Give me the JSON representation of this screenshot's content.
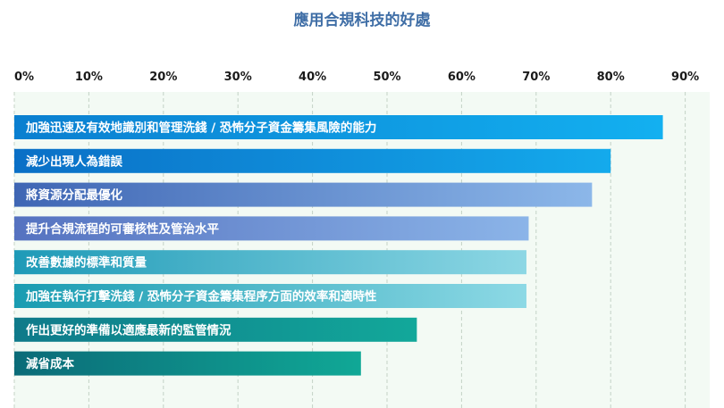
{
  "chart_data": {
    "type": "bar",
    "orientation": "horizontal",
    "title": "應用合規科技的好處",
    "xlabel": "",
    "ylabel": "",
    "xlim": [
      0,
      95
    ],
    "ticks": [
      "0%",
      "10%",
      "20%",
      "30%",
      "40%",
      "50%",
      "60%",
      "70%",
      "80%",
      "90%"
    ],
    "tick_values": [
      0,
      10,
      20,
      30,
      40,
      50,
      60,
      70,
      80,
      90
    ],
    "grid": "vertical dashed",
    "tick_labels_position": "top",
    "plot_background": "#f3faf4",
    "categories": [
      "加強迅速及有效地識別和管理洗錢 / 恐怖分子資金籌集風險的能力",
      "減少出現人為錯誤",
      "將資源分配最優化",
      "提升合規流程的可審核性及管治水平",
      "改善數據的標準和質量",
      "加強在執行打擊洗錢 / 恐怖分子資金籌集程序方面的效率和適時性",
      "作出更好的準備以適應最新的監管情況",
      "減省成本"
    ],
    "values": [
      87,
      80,
      77.5,
      69,
      68.7,
      68.7,
      54,
      46.5
    ],
    "bar_colors": [
      [
        "#0a7fd0",
        "#13b0f0"
      ],
      [
        "#0a6fc6",
        "#14aaec"
      ],
      [
        "#3f66b4",
        "#8cb7e9"
      ],
      [
        "#5572c0",
        "#8bb4e8"
      ],
      [
        "#1e9ab7",
        "#8dd7e4"
      ],
      [
        "#199cb1",
        "#8dd9e5"
      ],
      [
        "#0f7a8a",
        "#12a89a"
      ],
      [
        "#0b6b78",
        "#10a896"
      ]
    ]
  }
}
